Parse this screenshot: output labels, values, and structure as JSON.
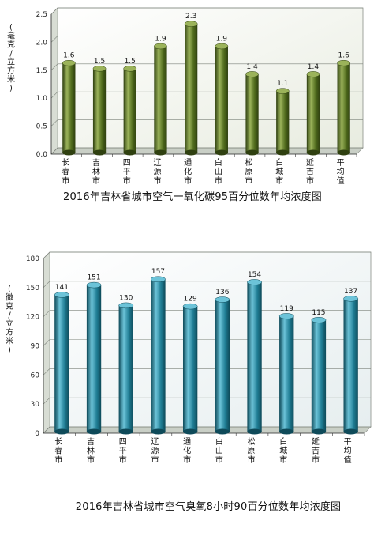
{
  "chart_data": [
    {
      "type": "bar",
      "title": "2016年吉林省城市空气一氧化碳95百分位数年均浓度图",
      "ylabel": "(毫克/立方米)",
      "categories": [
        "长春市",
        "吉林市",
        "四平市",
        "辽源市",
        "通化市",
        "白山市",
        "松原市",
        "白城市",
        "延吉市",
        "平均值"
      ],
      "values": [
        1.6,
        1.5,
        1.5,
        1.9,
        2.3,
        1.9,
        1.4,
        1.1,
        1.4,
        1.6
      ],
      "data_labels": [
        "1.6",
        "1.5",
        "1.5",
        "1.9",
        "2.3",
        "1.9",
        "1.4",
        "1.1",
        "1.4",
        "1.6"
      ],
      "yticks": [
        "0.0",
        "0.5",
        "1.0",
        "1.5",
        "2.0",
        "2.5"
      ],
      "ylim": [
        0,
        2.5
      ],
      "grid": true,
      "colors": {
        "bar": "#4f6a1c",
        "bar_highlight": "#9bb35a",
        "bar_dark": "#2f4010",
        "plot_bg": "#e8ece0"
      }
    },
    {
      "type": "bar",
      "title": "2016年吉林省城市空气臭氧8小时90百分位数年均浓度图",
      "ylabel": "(微克/立方米)",
      "categories": [
        "长春市",
        "吉林市",
        "四平市",
        "辽源市",
        "通化市",
        "白山市",
        "松原市",
        "白城市",
        "延吉市",
        "平均值"
      ],
      "values": [
        141,
        151,
        130,
        157,
        129,
        136,
        154,
        119,
        115,
        137
      ],
      "data_labels": [
        "141",
        "151",
        "130",
        "157",
        "129",
        "136",
        "154",
        "119",
        "115",
        "137"
      ],
      "yticks": [
        "0",
        "30",
        "60",
        "90",
        "120",
        "150",
        "180"
      ],
      "ylim": [
        0,
        180
      ],
      "grid": true,
      "colors": {
        "bar": "#1f7d94",
        "bar_highlight": "#6cc3d8",
        "bar_dark": "#0e4a59",
        "plot_bg": "#e6eeef"
      }
    }
  ]
}
